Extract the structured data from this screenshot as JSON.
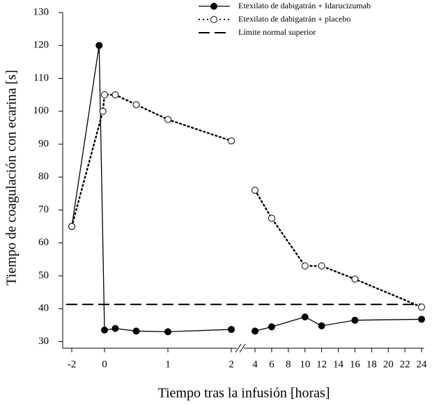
{
  "chart_data": {
    "type": "line",
    "x_label": "Tiempo tras la infusión [horas]",
    "y_label": "Tiempo de coagulación con ecarina [s]",
    "xlim": [
      -2.3,
      24.3
    ],
    "ylim": [
      28,
      130
    ],
    "xticks": [
      -2,
      0,
      1,
      2,
      4,
      6,
      8,
      10,
      12,
      14,
      16,
      18,
      20,
      22,
      24
    ],
    "yticks": [
      30,
      40,
      50,
      60,
      70,
      80,
      90,
      100,
      110,
      120,
      130
    ],
    "axis_break": [
      2,
      4
    ],
    "series": [
      {
        "name": "Etexilato de dabigatrán + Idarucizumab",
        "color": "#000000",
        "line_style": "solid",
        "marker": "filled",
        "x": [
          -2,
          -0.33,
          0,
          0.17,
          0.5,
          1,
          2,
          4,
          6,
          10,
          12,
          16,
          24
        ],
        "values": [
          65,
          120,
          33.5,
          34,
          33.2,
          33,
          33.7,
          33.2,
          34.5,
          37.5,
          34.8,
          36.5,
          36.8
        ]
      },
      {
        "name": "Etexilato de dabigatrán + placebo",
        "color": "#000000",
        "line_style": "dotted",
        "marker": "open",
        "x": [
          -2,
          -0.1,
          0,
          0.17,
          0.5,
          1,
          2,
          4,
          6,
          10,
          12,
          16,
          24
        ],
        "values": [
          65,
          100,
          105,
          105,
          102,
          97.5,
          91,
          76,
          67.5,
          53,
          53,
          49,
          40.5
        ]
      }
    ],
    "reference_line": {
      "name": "Límite normal superior",
      "value": 41.3,
      "line_style": "dashed",
      "color": "#000000"
    }
  }
}
